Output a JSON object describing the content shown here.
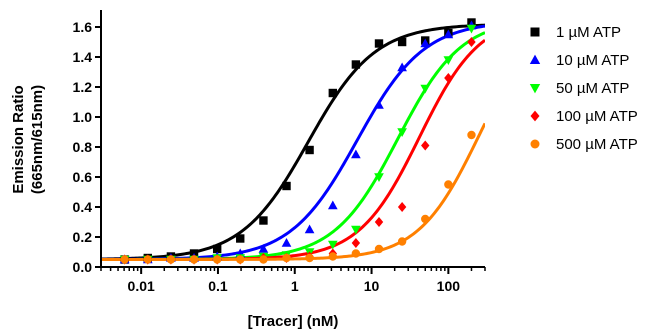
{
  "chart_data": {
    "type": "scatter",
    "title": "",
    "xlabel": "[Tracer] (nM)",
    "ylabel_line1": "Emission Ratio",
    "ylabel_line2": "(665nm/615nm)",
    "x_scale": "log",
    "xlim": [
      0.003,
      300
    ],
    "ylim": [
      0.0,
      1.7
    ],
    "x_ticks": [
      0.01,
      0.1,
      1,
      10,
      100
    ],
    "x_tick_labels": [
      "0.01",
      "0.1",
      "1",
      "10",
      "100"
    ],
    "y_ticks": [
      0.0,
      0.2,
      0.4,
      0.6,
      0.8,
      1.0,
      1.2,
      1.4,
      1.6
    ],
    "y_tick_labels": [
      "0.0",
      "0.2",
      "0.4",
      "0.6",
      "0.8",
      "1.0",
      "1.2",
      "1.4",
      "1.6"
    ],
    "grid": false,
    "legend_position": "right",
    "x": [
      0.0061,
      0.0122,
      0.0244,
      0.0488,
      0.0977,
      0.195,
      0.391,
      0.781,
      1.56,
      3.13,
      6.25,
      12.5,
      25,
      50,
      100,
      200
    ],
    "series": [
      {
        "name": "1 µM ATP",
        "color": "#000000",
        "marker": "square",
        "values": [
          0.05,
          0.06,
          0.07,
          0.09,
          0.12,
          0.19,
          0.31,
          0.54,
          0.78,
          1.16,
          1.35,
          1.49,
          1.5,
          1.51,
          1.56,
          1.63
        ],
        "fit": {
          "bottom": 0.05,
          "top": 1.62,
          "ec50": 1.5,
          "hill": 1.0
        }
      },
      {
        "name": "10 µM ATP",
        "color": "#0000ff",
        "marker": "triangle-up",
        "values": [
          0.05,
          0.05,
          0.06,
          0.06,
          0.07,
          0.09,
          0.12,
          0.16,
          0.25,
          0.41,
          0.75,
          1.08,
          1.33,
          1.49,
          1.55,
          1.61
        ],
        "fit": {
          "bottom": 0.05,
          "top": 1.64,
          "ec50": 6.5,
          "hill": 1.0
        }
      },
      {
        "name": "50 µM ATP",
        "color": "#00ff00",
        "marker": "triangle-down",
        "values": [
          0.05,
          0.05,
          0.05,
          0.05,
          0.06,
          0.06,
          0.07,
          0.08,
          0.1,
          0.15,
          0.25,
          0.6,
          0.9,
          1.19,
          1.38,
          1.59
        ],
        "fit": {
          "bottom": 0.05,
          "top": 1.66,
          "ec50": 22,
          "hill": 1.05
        }
      },
      {
        "name": "100 µM ATP",
        "color": "#ff0000",
        "marker": "diamond",
        "values": [
          0.05,
          0.05,
          0.05,
          0.05,
          0.05,
          0.05,
          0.06,
          0.06,
          0.07,
          0.09,
          0.16,
          0.3,
          0.4,
          0.81,
          1.26,
          1.5
        ],
        "fit": {
          "bottom": 0.05,
          "top": 1.68,
          "ec50": 42,
          "hill": 1.1
        }
      },
      {
        "name": "500 µM ATP",
        "color": "#ff8000",
        "marker": "circle",
        "values": [
          0.05,
          0.05,
          0.05,
          0.05,
          0.05,
          0.05,
          0.05,
          0.06,
          0.06,
          0.07,
          0.09,
          0.12,
          0.17,
          0.32,
          0.55,
          0.88
        ],
        "fit": {
          "bottom": 0.05,
          "top": 1.7,
          "ec50": 250,
          "hill": 1.1
        }
      }
    ]
  }
}
